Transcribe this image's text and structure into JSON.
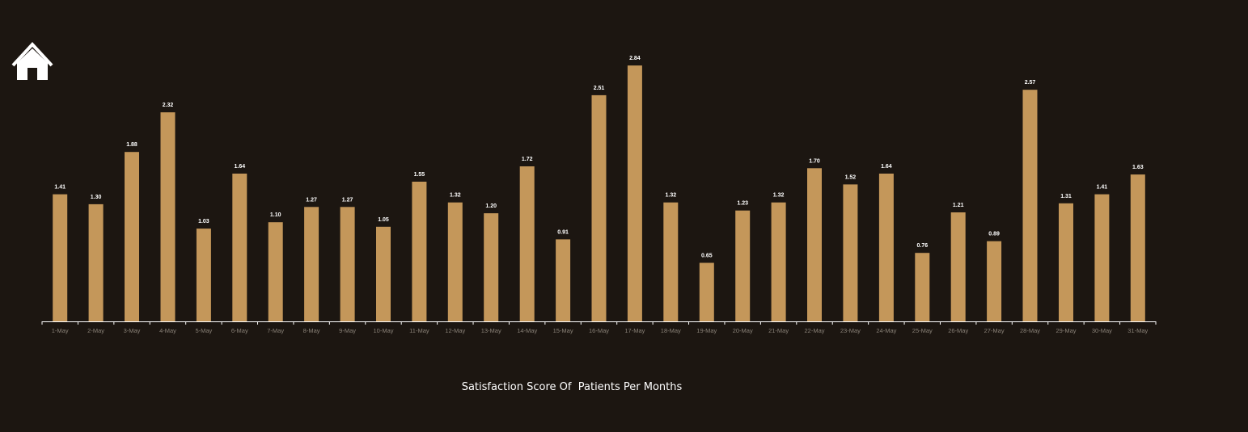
{
  "nav": {
    "home_icon": "home-icon"
  },
  "colors": {
    "background": "#1c1611",
    "bar": "#c4975a",
    "axis": "#ffffff",
    "tick_label": "#8a8278",
    "value_label": "#ffffff"
  },
  "chart_data": {
    "type": "bar",
    "title": "Satisfaction Score Of  Patients Per Months",
    "xlabel": "",
    "ylabel": "",
    "ylim": [
      0,
      2.9
    ],
    "grid": false,
    "legend": "none",
    "categories": [
      "1-May",
      "2-May",
      "3-May",
      "4-May",
      "5-May",
      "6-May",
      "7-May",
      "8-May",
      "9-May",
      "10-May",
      "11-May",
      "12-May",
      "13-May",
      "14-May",
      "15-May",
      "16-May",
      "17-May",
      "18-May",
      "19-May",
      "20-May",
      "21-May",
      "22-May",
      "23-May",
      "24-May",
      "25-May",
      "26-May",
      "27-May",
      "28-May",
      "29-May",
      "30-May",
      "31-May"
    ],
    "values": [
      1.41,
      1.3,
      1.88,
      2.32,
      1.03,
      1.64,
      1.1,
      1.27,
      1.27,
      1.05,
      1.55,
      1.32,
      1.2,
      1.72,
      0.91,
      2.51,
      2.84,
      1.32,
      0.65,
      1.23,
      1.32,
      1.7,
      1.52,
      1.64,
      0.76,
      1.21,
      0.89,
      2.57,
      1.31,
      1.41,
      1.63
    ],
    "data_labels": [
      "1.41",
      "1.30",
      "1.88",
      "2.32",
      "1.03",
      "1.64",
      "1.10",
      "1.27",
      "1.27",
      "1.05",
      "1.55",
      "1.32",
      "1.20",
      "1.72",
      "0.91",
      "2.51",
      "2.84",
      "1.32",
      "0.65",
      "1.23",
      "1.32",
      "1.70",
      "1.52",
      "1.64",
      "0.76",
      "1.21",
      "0.89",
      "2.57",
      "1.31",
      "1.41",
      "1.63"
    ]
  }
}
